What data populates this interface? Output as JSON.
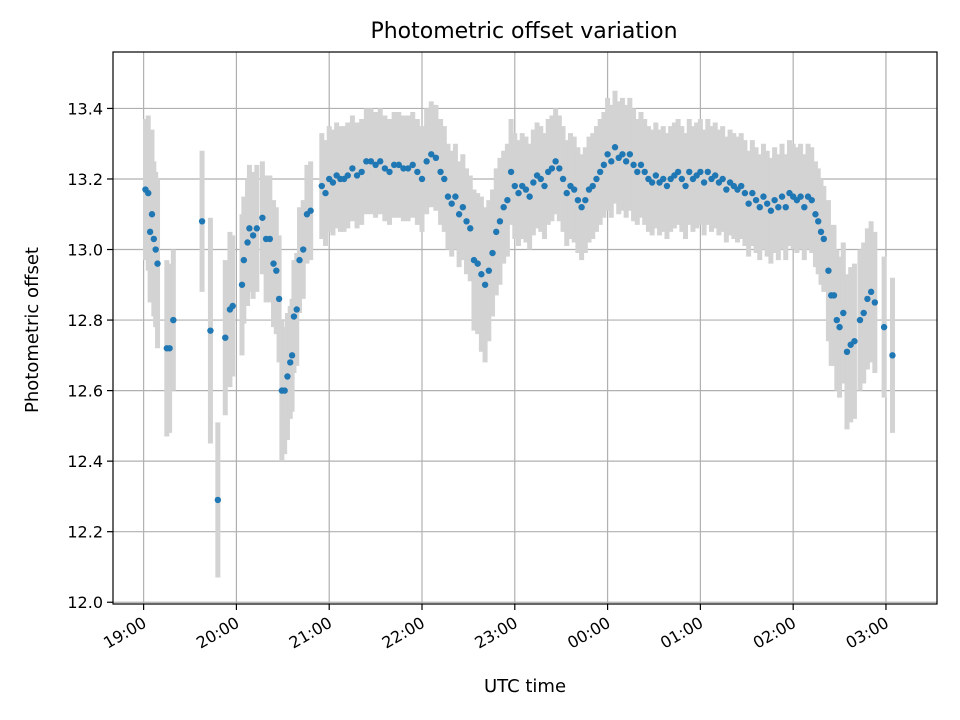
{
  "chart_data": {
    "type": "scatter",
    "title": "Photometric offset variation",
    "xlabel": "UTC time",
    "ylabel": "Photometric offset",
    "xlim_hours": [
      18.67,
      27.55
    ],
    "ylim": [
      11.995,
      13.56
    ],
    "grid": true,
    "x_ticks": [
      {
        "label": "19:00",
        "hour": 19
      },
      {
        "label": "20:00",
        "hour": 20
      },
      {
        "label": "21:00",
        "hour": 21
      },
      {
        "label": "22:00",
        "hour": 22
      },
      {
        "label": "23:00",
        "hour": 23
      },
      {
        "label": "00:00",
        "hour": 24
      },
      {
        "label": "01:00",
        "hour": 25
      },
      {
        "label": "02:00",
        "hour": 26
      },
      {
        "label": "03:00",
        "hour": 27
      }
    ],
    "y_ticks": [
      12.0,
      12.2,
      12.4,
      12.6,
      12.8,
      13.0,
      13.2,
      13.4
    ],
    "colors": {
      "points": "#1f77b4",
      "errorbars": "#d3d3d3"
    },
    "points": [
      [
        19.02,
        13.17,
        0.2
      ],
      [
        19.05,
        13.16,
        0.22
      ],
      [
        19.07,
        13.05,
        0.2
      ],
      [
        19.09,
        13.1,
        0.24
      ],
      [
        19.11,
        13.03,
        0.22
      ],
      [
        19.13,
        13.0,
        0.22
      ],
      [
        19.15,
        12.96,
        0.24
      ],
      [
        19.25,
        12.72,
        0.25
      ],
      [
        19.28,
        12.72,
        0.24
      ],
      [
        19.32,
        12.8,
        0.2
      ],
      [
        19.63,
        13.08,
        0.2
      ],
      [
        19.72,
        12.77,
        0.32
      ],
      [
        19.8,
        12.29,
        0.22
      ],
      [
        19.88,
        12.75,
        0.22
      ],
      [
        19.93,
        12.83,
        0.22
      ],
      [
        19.96,
        12.84,
        0.2
      ],
      [
        20.06,
        12.9,
        0.2
      ],
      [
        20.08,
        12.97,
        0.18
      ],
      [
        20.12,
        13.02,
        0.18
      ],
      [
        20.14,
        13.06,
        0.18
      ],
      [
        20.18,
        13.04,
        0.18
      ],
      [
        20.22,
        13.06,
        0.18
      ],
      [
        20.28,
        13.09,
        0.16
      ],
      [
        20.32,
        13.03,
        0.18
      ],
      [
        20.36,
        13.03,
        0.18
      ],
      [
        20.4,
        12.96,
        0.18
      ],
      [
        20.43,
        12.94,
        0.18
      ],
      [
        20.46,
        12.86,
        0.18
      ],
      [
        20.49,
        12.6,
        0.2
      ],
      [
        20.52,
        12.6,
        0.18
      ],
      [
        20.55,
        12.64,
        0.18
      ],
      [
        20.58,
        12.68,
        0.16
      ],
      [
        20.6,
        12.7,
        0.16
      ],
      [
        20.62,
        12.81,
        0.16
      ],
      [
        20.65,
        12.83,
        0.16
      ],
      [
        20.68,
        12.97,
        0.15
      ],
      [
        20.72,
        13.0,
        0.14
      ],
      [
        20.76,
        13.1,
        0.14
      ],
      [
        20.8,
        13.11,
        0.14
      ],
      [
        20.92,
        13.18,
        0.15
      ],
      [
        20.96,
        13.16,
        0.15
      ],
      [
        21.0,
        13.2,
        0.15
      ],
      [
        21.04,
        13.19,
        0.15
      ],
      [
        21.08,
        13.21,
        0.15
      ],
      [
        21.12,
        13.2,
        0.15
      ],
      [
        21.16,
        13.2,
        0.15
      ],
      [
        21.2,
        13.21,
        0.15
      ],
      [
        21.25,
        13.23,
        0.15
      ],
      [
        21.3,
        13.21,
        0.15
      ],
      [
        21.35,
        13.22,
        0.15
      ],
      [
        21.4,
        13.25,
        0.15
      ],
      [
        21.45,
        13.25,
        0.15
      ],
      [
        21.5,
        13.24,
        0.15
      ],
      [
        21.55,
        13.25,
        0.15
      ],
      [
        21.6,
        13.23,
        0.15
      ],
      [
        21.65,
        13.22,
        0.15
      ],
      [
        21.7,
        13.24,
        0.15
      ],
      [
        21.75,
        13.24,
        0.15
      ],
      [
        21.8,
        13.23,
        0.15
      ],
      [
        21.85,
        13.23,
        0.15
      ],
      [
        21.9,
        13.24,
        0.15
      ],
      [
        21.95,
        13.22,
        0.15
      ],
      [
        22.0,
        13.2,
        0.15
      ],
      [
        22.05,
        13.25,
        0.15
      ],
      [
        22.1,
        13.27,
        0.15
      ],
      [
        22.15,
        13.26,
        0.15
      ],
      [
        22.2,
        13.22,
        0.15
      ],
      [
        22.24,
        13.2,
        0.15
      ],
      [
        22.28,
        13.15,
        0.15
      ],
      [
        22.32,
        13.13,
        0.15
      ],
      [
        22.36,
        13.15,
        0.15
      ],
      [
        22.4,
        13.1,
        0.15
      ],
      [
        22.44,
        13.12,
        0.15
      ],
      [
        22.48,
        13.08,
        0.15
      ],
      [
        22.52,
        13.06,
        0.15
      ],
      [
        22.56,
        12.97,
        0.2
      ],
      [
        22.6,
        12.96,
        0.2
      ],
      [
        22.64,
        12.93,
        0.22
      ],
      [
        22.68,
        12.9,
        0.22
      ],
      [
        22.72,
        12.94,
        0.2
      ],
      [
        22.76,
        12.99,
        0.18
      ],
      [
        22.8,
        13.05,
        0.18
      ],
      [
        22.84,
        13.08,
        0.18
      ],
      [
        22.88,
        13.12,
        0.16
      ],
      [
        22.92,
        13.14,
        0.16
      ],
      [
        22.96,
        13.22,
        0.15
      ],
      [
        23.0,
        13.18,
        0.15
      ],
      [
        23.04,
        13.16,
        0.15
      ],
      [
        23.08,
        13.18,
        0.15
      ],
      [
        23.12,
        13.17,
        0.15
      ],
      [
        23.16,
        13.15,
        0.15
      ],
      [
        23.2,
        13.19,
        0.15
      ],
      [
        23.24,
        13.21,
        0.15
      ],
      [
        23.28,
        13.2,
        0.15
      ],
      [
        23.32,
        13.18,
        0.15
      ],
      [
        23.36,
        13.22,
        0.15
      ],
      [
        23.4,
        13.23,
        0.15
      ],
      [
        23.44,
        13.25,
        0.15
      ],
      [
        23.48,
        13.23,
        0.15
      ],
      [
        23.52,
        13.2,
        0.15
      ],
      [
        23.56,
        13.16,
        0.15
      ],
      [
        23.6,
        13.18,
        0.15
      ],
      [
        23.64,
        13.17,
        0.15
      ],
      [
        23.68,
        13.14,
        0.15
      ],
      [
        23.72,
        13.12,
        0.15
      ],
      [
        23.76,
        13.14,
        0.15
      ],
      [
        23.8,
        13.17,
        0.15
      ],
      [
        23.84,
        13.18,
        0.15
      ],
      [
        23.88,
        13.2,
        0.15
      ],
      [
        23.92,
        13.22,
        0.15
      ],
      [
        23.96,
        13.24,
        0.15
      ],
      [
        24.0,
        13.27,
        0.16
      ],
      [
        24.04,
        13.25,
        0.16
      ],
      [
        24.08,
        13.29,
        0.16
      ],
      [
        24.12,
        13.26,
        0.16
      ],
      [
        24.16,
        13.27,
        0.16
      ],
      [
        24.2,
        13.25,
        0.16
      ],
      [
        24.24,
        13.27,
        0.16
      ],
      [
        24.28,
        13.24,
        0.16
      ],
      [
        24.32,
        13.22,
        0.15
      ],
      [
        24.36,
        13.24,
        0.15
      ],
      [
        24.4,
        13.22,
        0.15
      ],
      [
        24.44,
        13.2,
        0.15
      ],
      [
        24.48,
        13.19,
        0.15
      ],
      [
        24.52,
        13.21,
        0.15
      ],
      [
        24.56,
        13.19,
        0.15
      ],
      [
        24.6,
        13.2,
        0.15
      ],
      [
        24.64,
        13.18,
        0.15
      ],
      [
        24.68,
        13.2,
        0.15
      ],
      [
        24.72,
        13.21,
        0.15
      ],
      [
        24.76,
        13.22,
        0.15
      ],
      [
        24.8,
        13.2,
        0.15
      ],
      [
        24.84,
        13.18,
        0.15
      ],
      [
        24.88,
        13.22,
        0.15
      ],
      [
        24.92,
        13.2,
        0.15
      ],
      [
        24.96,
        13.21,
        0.15
      ],
      [
        25.0,
        13.22,
        0.15
      ],
      [
        25.04,
        13.19,
        0.15
      ],
      [
        25.08,
        13.22,
        0.15
      ],
      [
        25.12,
        13.2,
        0.15
      ],
      [
        25.16,
        13.21,
        0.15
      ],
      [
        25.2,
        13.19,
        0.15
      ],
      [
        25.24,
        13.2,
        0.15
      ],
      [
        25.28,
        13.17,
        0.15
      ],
      [
        25.32,
        13.19,
        0.15
      ],
      [
        25.36,
        13.18,
        0.15
      ],
      [
        25.4,
        13.17,
        0.15
      ],
      [
        25.44,
        13.18,
        0.15
      ],
      [
        25.48,
        13.16,
        0.15
      ],
      [
        25.52,
        13.13,
        0.15
      ],
      [
        25.56,
        13.16,
        0.15
      ],
      [
        25.6,
        13.14,
        0.15
      ],
      [
        25.64,
        13.12,
        0.15
      ],
      [
        25.68,
        13.15,
        0.15
      ],
      [
        25.72,
        13.13,
        0.15
      ],
      [
        25.76,
        13.11,
        0.15
      ],
      [
        25.8,
        13.14,
        0.15
      ],
      [
        25.84,
        13.12,
        0.15
      ],
      [
        25.88,
        13.15,
        0.15
      ],
      [
        25.92,
        13.12,
        0.15
      ],
      [
        25.96,
        13.16,
        0.15
      ],
      [
        26.0,
        13.15,
        0.15
      ],
      [
        26.04,
        13.14,
        0.15
      ],
      [
        26.08,
        13.15,
        0.15
      ],
      [
        26.12,
        13.12,
        0.15
      ],
      [
        26.16,
        13.15,
        0.15
      ],
      [
        26.2,
        13.14,
        0.15
      ],
      [
        26.24,
        13.1,
        0.15
      ],
      [
        26.27,
        13.08,
        0.15
      ],
      [
        26.3,
        13.05,
        0.15
      ],
      [
        26.33,
        13.03,
        0.15
      ],
      [
        26.38,
        12.94,
        0.2
      ],
      [
        26.41,
        12.87,
        0.2
      ],
      [
        26.44,
        12.87,
        0.2
      ],
      [
        26.47,
        12.8,
        0.2
      ],
      [
        26.5,
        12.78,
        0.2
      ],
      [
        26.54,
        12.82,
        0.2
      ],
      [
        26.58,
        12.71,
        0.22
      ],
      [
        26.62,
        12.73,
        0.22
      ],
      [
        26.66,
        12.74,
        0.22
      ],
      [
        26.72,
        12.8,
        0.2
      ],
      [
        26.76,
        12.82,
        0.2
      ],
      [
        26.8,
        12.86,
        0.2
      ],
      [
        26.84,
        12.88,
        0.2
      ],
      [
        26.88,
        12.85,
        0.2
      ],
      [
        26.98,
        12.78,
        0.2
      ],
      [
        27.07,
        12.7,
        0.22
      ]
    ]
  }
}
